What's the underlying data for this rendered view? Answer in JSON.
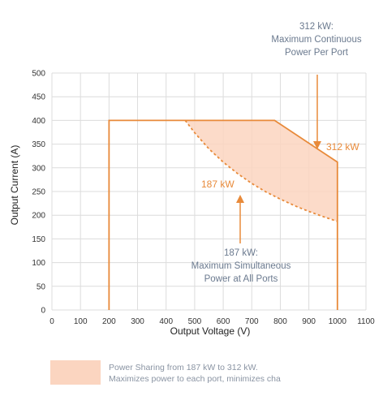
{
  "chart_data": {
    "type": "line",
    "xlabel": "Output Voltage (V)",
    "ylabel": "Output Current (A)",
    "xlim": [
      0,
      1100
    ],
    "ylim": [
      0,
      500
    ],
    "x_ticks": [
      0,
      100,
      200,
      300,
      400,
      500,
      600,
      700,
      800,
      900,
      1000,
      1100
    ],
    "y_ticks": [
      0,
      50,
      100,
      150,
      200,
      250,
      300,
      350,
      400,
      450,
      500
    ],
    "grid": true,
    "series": [
      {
        "name": "312 kW",
        "style": "solid",
        "color": "#e88a3a",
        "x": [
          200,
          200,
          780,
          1000,
          1000
        ],
        "y": [
          0,
          400,
          400,
          312,
          0
        ]
      },
      {
        "name": "187 kW",
        "style": "dashed",
        "color": "#e88a3a",
        "x": [
          467,
          500,
          550,
          600,
          650,
          700,
          750,
          800,
          850,
          900,
          950,
          1000
        ],
        "y": [
          400,
          374,
          340,
          312,
          288,
          267,
          249,
          234,
          220,
          208,
          197,
          187
        ]
      }
    ],
    "annotations": [
      {
        "id": "max_continuous",
        "lines": [
          "312 kW:",
          "Maximum Continuous",
          "Power Per Port"
        ],
        "color": "#6b7a8f"
      },
      {
        "id": "label_312",
        "text": "312 kW",
        "color": "#e88a3a"
      },
      {
        "id": "label_187",
        "text": "187 kW",
        "color": "#e88a3a"
      },
      {
        "id": "max_simultaneous",
        "lines": [
          "187 kW:",
          "Maximum Simultaneous",
          "Power at All Ports"
        ],
        "color": "#6b7a8f"
      }
    ],
    "shaded_region": {
      "between": [
        "187 kW",
        "312 kW"
      ],
      "color": "#fbd5c0"
    },
    "legend": {
      "placement": "bottom",
      "swatch_color": "#fbd5c0",
      "lines": [
        "Power Sharing from 187 kW to 312 kW.",
        "Maximizes power to each port, minimizes cha"
      ]
    }
  }
}
